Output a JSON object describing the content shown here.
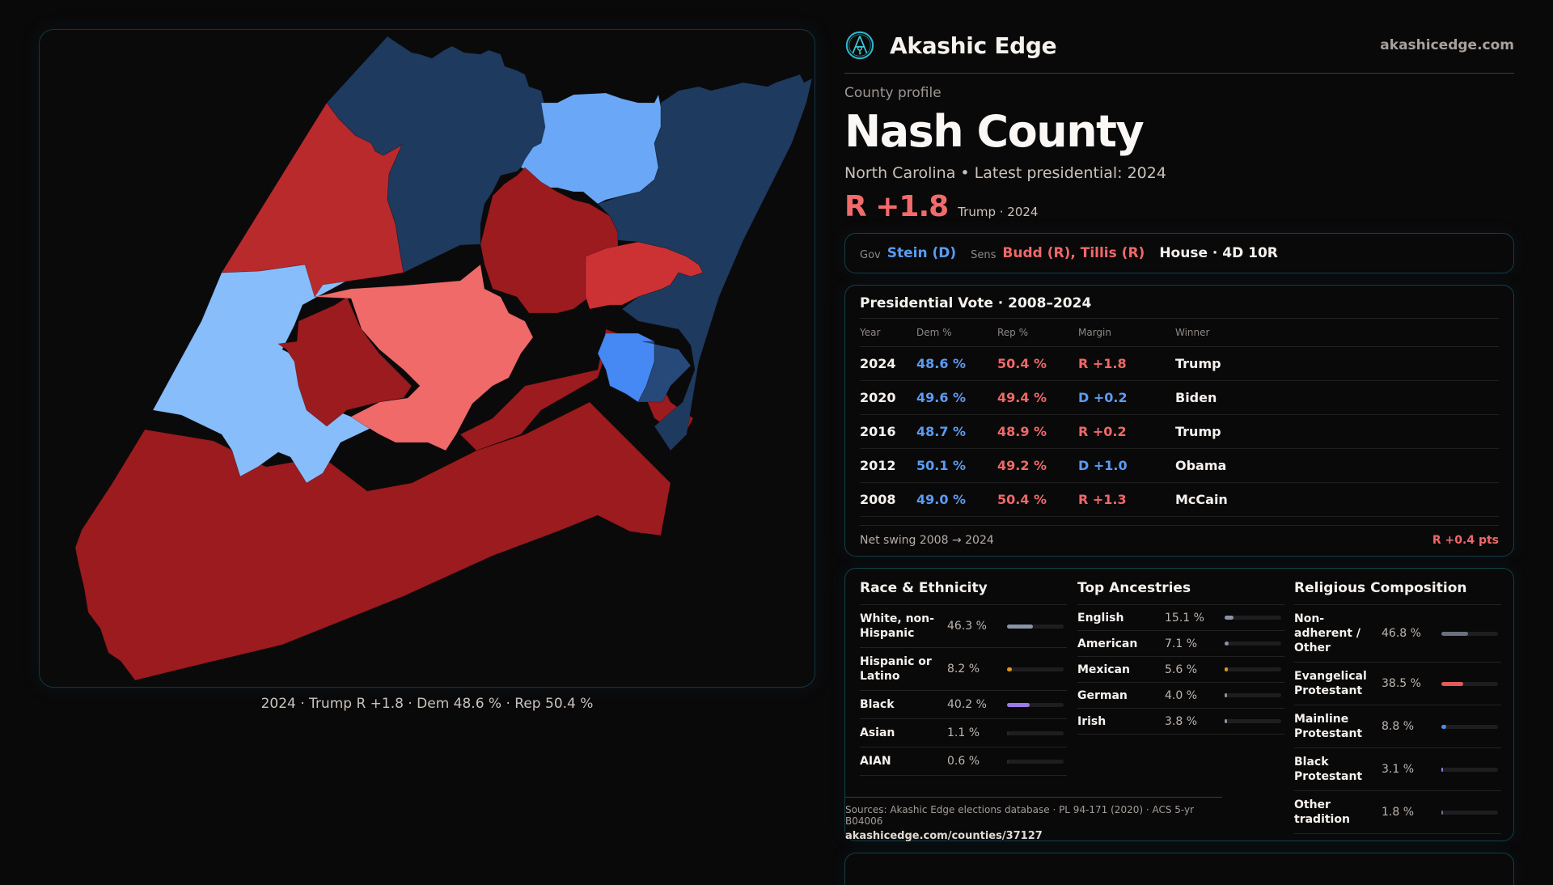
{
  "brand": {
    "name": "Akashic Edge",
    "site": "akashicedge.com",
    "logo_icon": "compass-key-emblem-icon"
  },
  "header": {
    "eyebrow": "County profile",
    "title": "Nash County",
    "subtitle": "North Carolina • Latest presidential: 2024",
    "margin": "R +1.8",
    "margin_sub": "Trump · 2024"
  },
  "officials": {
    "gov_label": "Gov",
    "gov_value": "Stein (D)",
    "sens_label": "Sens",
    "sens_value": "Budd (R), Tillis (R)",
    "house": "House · 4D 10R"
  },
  "presidential": {
    "title": "Presidential Vote · 2008–2024",
    "columns": [
      "Year",
      "Dem %",
      "Rep %",
      "Margin",
      "Winner"
    ],
    "rows": [
      {
        "year": "2024",
        "dem": "48.6 %",
        "rep": "50.4 %",
        "margin": "R +1.8",
        "margin_party": "R",
        "winner": "Trump"
      },
      {
        "year": "2020",
        "dem": "49.6 %",
        "rep": "49.4 %",
        "margin": "D +0.2",
        "margin_party": "D",
        "winner": "Biden"
      },
      {
        "year": "2016",
        "dem": "48.7 %",
        "rep": "48.9 %",
        "margin": "R +0.2",
        "margin_party": "R",
        "winner": "Trump"
      },
      {
        "year": "2012",
        "dem": "50.1 %",
        "rep": "49.2 %",
        "margin": "D +1.0",
        "margin_party": "D",
        "winner": "Obama"
      },
      {
        "year": "2008",
        "dem": "49.0 %",
        "rep": "50.4 %",
        "margin": "R +1.3",
        "margin_party": "R",
        "winner": "McCain"
      }
    ],
    "swing_label": "Net swing 2008 → 2024",
    "swing_value": "R +0.4 pts"
  },
  "race": {
    "title": "Race & Ethnicity",
    "items": [
      {
        "label": "White, non-Hispanic",
        "value": "46.3 %",
        "pct": 46.3,
        "color": "#8b93a7"
      },
      {
        "label": "Hispanic or Latino",
        "value": "8.2 %",
        "pct": 8.2,
        "color": "#e0961c"
      },
      {
        "label": "Black",
        "value": "40.2 %",
        "pct": 40.2,
        "color": "#9b7be6"
      },
      {
        "label": "Asian",
        "value": "1.1 %",
        "pct": 1.1,
        "color": "#2a2a2e"
      },
      {
        "label": "AIAN",
        "value": "0.6 %",
        "pct": 0.6,
        "color": "#2a2a2e"
      }
    ]
  },
  "ancestry": {
    "title": "Top Ancestries",
    "items": [
      {
        "label": "English",
        "value": "15.1 %",
        "pct": 15.1,
        "color": "#8b93a7"
      },
      {
        "label": "American",
        "value": "7.1 %",
        "pct": 7.1,
        "color": "#8b93a7"
      },
      {
        "label": "Mexican",
        "value": "5.6 %",
        "pct": 5.6,
        "color": "#e0961c"
      },
      {
        "label": "German",
        "value": "4.0 %",
        "pct": 4.0,
        "color": "#8b93a7"
      },
      {
        "label": "Irish",
        "value": "3.8 %",
        "pct": 3.8,
        "color": "#8b93a7"
      }
    ]
  },
  "religion": {
    "title": "Religious Composition",
    "items": [
      {
        "label": "Non-adherent / Other",
        "value": "46.8 %",
        "pct": 46.8,
        "color": "#6b7080"
      },
      {
        "label": "Evangelical Protestant",
        "value": "38.5 %",
        "pct": 38.5,
        "color": "#e25a5a"
      },
      {
        "label": "Mainline Protestant",
        "value": "8.8 %",
        "pct": 8.8,
        "color": "#4a8de8"
      },
      {
        "label": "Black Protestant",
        "value": "3.1 %",
        "pct": 3.1,
        "color": "#9b7be6"
      },
      {
        "label": "Other tradition",
        "value": "1.8 %",
        "pct": 1.8,
        "color": "#6b7080"
      }
    ]
  },
  "sources": {
    "text": "Sources: Akashic Edge elections database · PL 94-171 (2020) · ACS 5-yr B04006",
    "link": "akashicedge.com/counties/37127"
  },
  "map": {
    "caption": "2024 · Trump R +1.8 · Dem 48.6 % · Rep 50.4 %",
    "colors": {
      "safe_d": "#1f3a5f",
      "lean_d": "#88bdfb",
      "likely_d": "#6aa8f7",
      "tilt_d": "#4689f5",
      "mid_d": "#26497a",
      "safe_r": "#9b1b1f",
      "likely_r": "#b92a2d",
      "lean_r": "#cc3234",
      "tilt_r": "#f06a6a"
    }
  }
}
